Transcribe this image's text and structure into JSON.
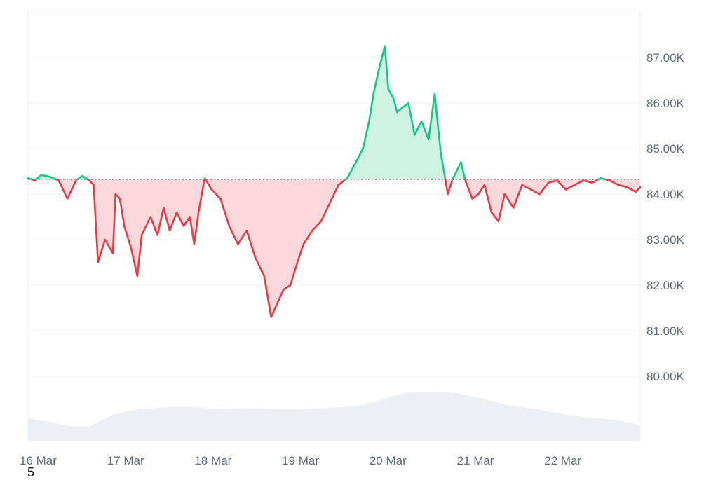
{
  "chart_data": {
    "type": "area",
    "baseline": 84320,
    "ylim": [
      79000,
      87900
    ],
    "xlim": [
      0,
      7
    ],
    "y_ticks": [
      {
        "value": 87000,
        "label": "87.00K"
      },
      {
        "value": 86000,
        "label": "86.00K"
      },
      {
        "value": 85000,
        "label": "85.00K"
      },
      {
        "value": 84000,
        "label": "84.00K"
      },
      {
        "value": 83000,
        "label": "83.00K"
      },
      {
        "value": 82000,
        "label": "82.00K"
      },
      {
        "value": 81000,
        "label": "81.00K"
      },
      {
        "value": 80000,
        "label": "80.00K"
      }
    ],
    "x_ticks": [
      {
        "value": 0,
        "label": "16 Mar"
      },
      {
        "value": 1,
        "label": "17 Mar"
      },
      {
        "value": 2,
        "label": "18 Mar"
      },
      {
        "value": 3,
        "label": "19 Mar"
      },
      {
        "value": 4,
        "label": "20 Mar"
      },
      {
        "value": 5,
        "label": "21 Mar"
      },
      {
        "value": 6,
        "label": "22 Mar"
      }
    ],
    "price_x": [
      0,
      0.08,
      0.15,
      0.25,
      0.35,
      0.45,
      0.55,
      0.62,
      0.7,
      0.75,
      0.8,
      0.88,
      0.97,
      1.0,
      1.05,
      1.1,
      1.18,
      1.25,
      1.3,
      1.4,
      1.48,
      1.55,
      1.62,
      1.7,
      1.78,
      1.85,
      1.9,
      1.95,
      2.02,
      2.1,
      2.2,
      2.3,
      2.4,
      2.5,
      2.6,
      2.7,
      2.78,
      2.85,
      2.92,
      3.0,
      3.08,
      3.15,
      3.25,
      3.35,
      3.45,
      3.55,
      3.65,
      3.75,
      3.83,
      3.9,
      3.95,
      4.02,
      4.08,
      4.12,
      4.18,
      4.22,
      4.28,
      4.35,
      4.42,
      4.5,
      4.58,
      4.65,
      4.72,
      4.8,
      4.85,
      4.9,
      4.95,
      5.0,
      5.08,
      5.15,
      5.22,
      5.3,
      5.38,
      5.45,
      5.55,
      5.65,
      5.75,
      5.85,
      5.95,
      6.05,
      6.15,
      6.25,
      6.35,
      6.45,
      6.55,
      6.65,
      6.75,
      6.85,
      6.95,
      7.0
    ],
    "price_y": [
      84350,
      84300,
      84420,
      84380,
      84300,
      83900,
      84300,
      84400,
      84300,
      84200,
      82500,
      83000,
      82700,
      84000,
      83900,
      83300,
      82800,
      82200,
      83100,
      83500,
      83100,
      83700,
      83200,
      83600,
      83300,
      83500,
      82900,
      83600,
      84350,
      84100,
      83900,
      83300,
      82900,
      83200,
      82600,
      82200,
      81300,
      81600,
      81900,
      82000,
      82500,
      82900,
      83200,
      83400,
      83800,
      84200,
      84350,
      84700,
      85000,
      85600,
      86200,
      86800,
      87250,
      86300,
      86100,
      85800,
      85900,
      86000,
      85300,
      85600,
      85200,
      86200,
      84900,
      84000,
      84300,
      84500,
      84700,
      84300,
      83900,
      84000,
      84200,
      83600,
      83400,
      84000,
      83700,
      84200,
      84100,
      84000,
      84250,
      84300,
      84100,
      84200,
      84300,
      84250,
      84350,
      84300,
      84200,
      84150,
      84050,
      84150
    ],
    "volume_x": [
      0,
      0.5,
      0.7,
      1.0,
      1.3,
      1.6,
      1.9,
      2.2,
      2.5,
      2.8,
      3.1,
      3.4,
      3.6,
      3.8,
      4.0,
      4.3,
      4.6,
      4.9,
      5.2,
      5.5,
      5.8,
      6.1,
      6.4,
      6.7,
      6.9,
      7.0
    ],
    "volume_rel": [
      0.27,
      0.17,
      0.17,
      0.32,
      0.38,
      0.4,
      0.4,
      0.38,
      0.39,
      0.38,
      0.38,
      0.39,
      0.4,
      0.42,
      0.48,
      0.57,
      0.58,
      0.57,
      0.5,
      0.42,
      0.38,
      0.32,
      0.28,
      0.25,
      0.21,
      0.18
    ],
    "grid": true,
    "colors": {
      "up": "#16c784",
      "down": "#ea3943",
      "up_fill": "#c9f2df",
      "down_fill": "#fbd4d7",
      "volume": "#eceff3",
      "grid": "#eef0f3",
      "axis_text": "#5f6b7a",
      "baseline": "#7a8088"
    }
  },
  "footnote": "5"
}
